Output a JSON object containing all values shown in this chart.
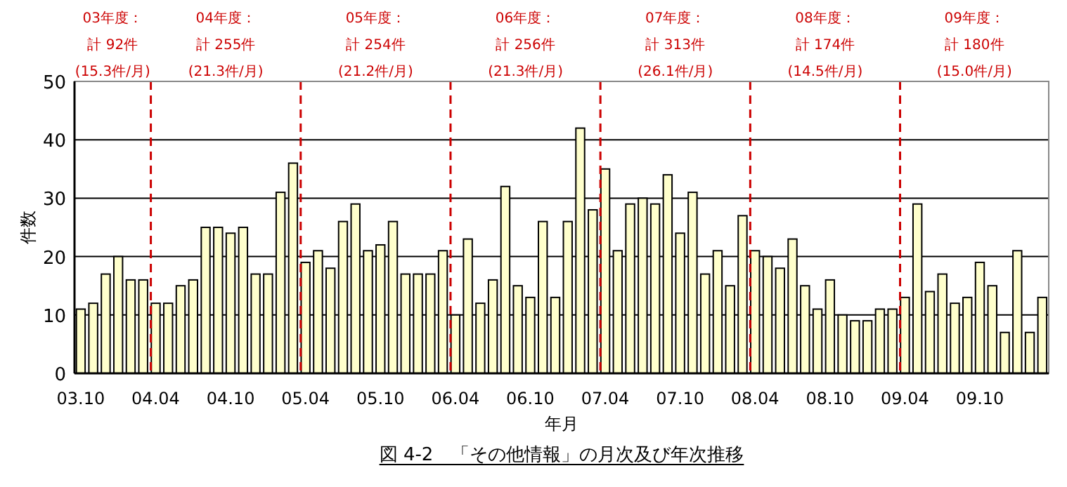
{
  "chart_data": {
    "type": "bar",
    "title": "図 4-2　「その他情報」の月次及び年次推移",
    "xlabel": "年月",
    "ylabel": "件数",
    "x": [
      "2003-10",
      "2003-11",
      "2003-12",
      "2004-01",
      "2004-02",
      "2004-03",
      "2004-04",
      "2004-05",
      "2004-06",
      "2004-07",
      "2004-08",
      "2004-09",
      "2004-10",
      "2004-11",
      "2004-12",
      "2005-01",
      "2005-02",
      "2005-03",
      "2005-04",
      "2005-05",
      "2005-06",
      "2005-07",
      "2005-08",
      "2005-09",
      "2005-10",
      "2005-11",
      "2005-12",
      "2006-01",
      "2006-02",
      "2006-03",
      "2006-04",
      "2006-05",
      "2006-06",
      "2006-07",
      "2006-08",
      "2006-09",
      "2006-10",
      "2006-11",
      "2006-12",
      "2007-01",
      "2007-02",
      "2007-03",
      "2007-04",
      "2007-05",
      "2007-06",
      "2007-07",
      "2007-08",
      "2007-09",
      "2007-10",
      "2007-11",
      "2007-12",
      "2008-01",
      "2008-02",
      "2008-03",
      "2008-04",
      "2008-05",
      "2008-06",
      "2008-07",
      "2008-08",
      "2008-09",
      "2008-10",
      "2008-11",
      "2008-12",
      "2009-01",
      "2009-02",
      "2009-03",
      "2009-04",
      "2009-05",
      "2009-06",
      "2009-07",
      "2009-08",
      "2009-09",
      "2009-10",
      "2009-11",
      "2009-12",
      "2010-01",
      "2010-02",
      "2010-03"
    ],
    "values": [
      11,
      12,
      17,
      20,
      16,
      16,
      12,
      12,
      15,
      16,
      25,
      25,
      24,
      25,
      17,
      17,
      31,
      36,
      19,
      21,
      18,
      26,
      29,
      21,
      22,
      26,
      17,
      17,
      17,
      21,
      10,
      23,
      12,
      16,
      32,
      15,
      13,
      26,
      13,
      26,
      42,
      28,
      35,
      21,
      29,
      30,
      29,
      34,
      24,
      31,
      17,
      21,
      15,
      27,
      21,
      20,
      18,
      23,
      15,
      11,
      16,
      10,
      9,
      9,
      11,
      11,
      13,
      29,
      14,
      17,
      12,
      13,
      19,
      15,
      7,
      21,
      7,
      13
    ],
    "color": "#ffffcc",
    "xlim": [
      "2003-09-16",
      "2010-03-17"
    ],
    "xticks": [
      {
        "value": "2003-10",
        "label": "03.10"
      },
      {
        "value": "2004-04",
        "label": "04.04"
      },
      {
        "value": "2004-10",
        "label": "04.10"
      },
      {
        "value": "2005-04",
        "label": "05.04"
      },
      {
        "value": "2005-10",
        "label": "05.10"
      },
      {
        "value": "2006-04",
        "label": "06.04"
      },
      {
        "value": "2006-10",
        "label": "06.10"
      },
      {
        "value": "2007-04",
        "label": "07.04"
      },
      {
        "value": "2007-10",
        "label": "07.10"
      },
      {
        "value": "2008-04",
        "label": "08.04"
      },
      {
        "value": "2008-10",
        "label": "08.10"
      },
      {
        "value": "2009-04",
        "label": "09.04"
      },
      {
        "value": "2009-10",
        "label": "09.10"
      }
    ],
    "ylim": [
      0,
      50
    ],
    "yticks": [
      0,
      10,
      20,
      30,
      40,
      50
    ],
    "grid": "y",
    "ref_lines": [
      {
        "axis": "x",
        "value": "2004-03-20",
        "color": "#cc0000",
        "line_style": "dashed"
      },
      {
        "axis": "x",
        "value": "2005-03-20",
        "color": "#cc0000",
        "line_style": "dashed"
      },
      {
        "axis": "x",
        "value": "2006-03-20",
        "color": "#cc0000",
        "line_style": "dashed"
      },
      {
        "axis": "x",
        "value": "2007-03-20",
        "color": "#cc0000",
        "line_style": "dashed"
      },
      {
        "axis": "x",
        "value": "2008-03-20",
        "color": "#cc0000",
        "line_style": "dashed"
      },
      {
        "axis": "x",
        "value": "2009-03-20",
        "color": "#cc0000",
        "line_style": "dashed"
      }
    ],
    "annotations": [
      "03年度：",
      "計 92件",
      "(15.3件/月)",
      "04年度：",
      "計 255件",
      "(21.3件/月)",
      "05年度：",
      "計 254件",
      "(21.2件/月)",
      "06年度：",
      "計 256件",
      "(21.3件/月)",
      "07年度：",
      "計 313件",
      "(26.1件/月)",
      "08年度：",
      "計 174件",
      "(14.5件/月)",
      "09年度：",
      "計 180件",
      "(15.0件/月)"
    ]
  }
}
